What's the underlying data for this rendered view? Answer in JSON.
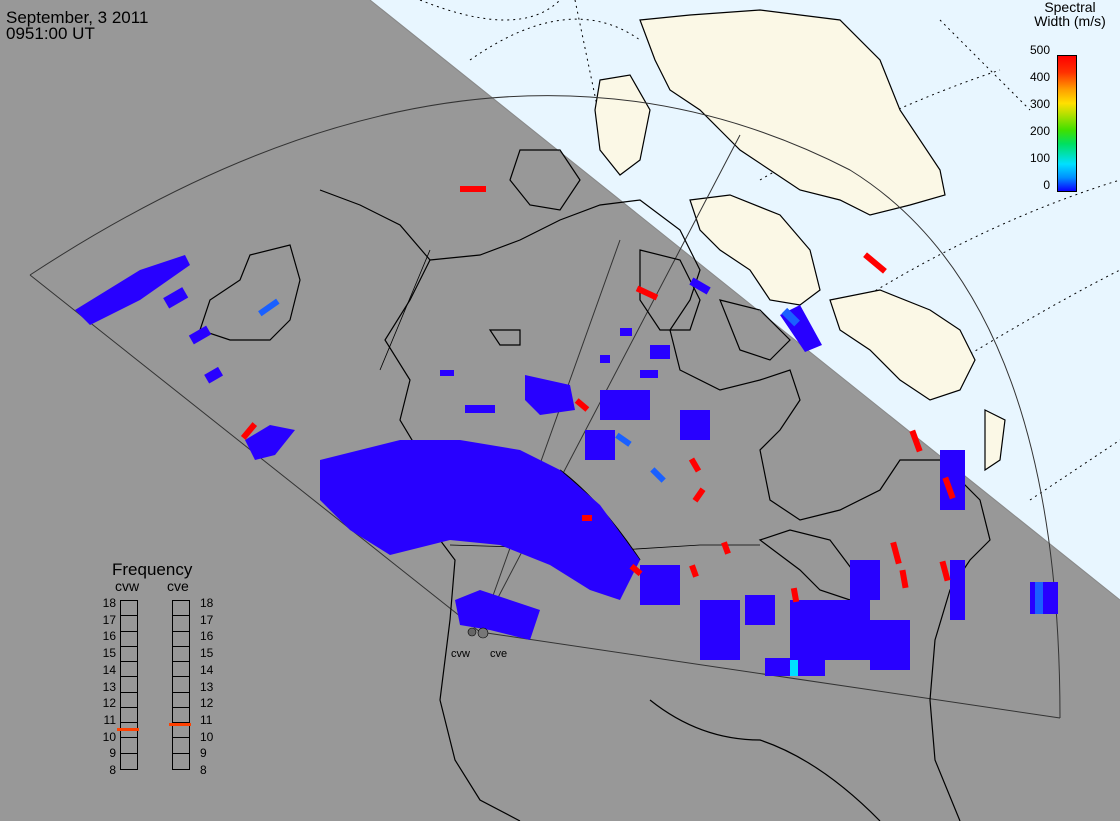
{
  "header": {
    "date": "September, 3 2011",
    "time": "0951:00 UT"
  },
  "colorbar": {
    "title_line1": "Spectral",
    "title_line2": "Width (m/s)",
    "ticks": [
      "500",
      "400",
      "300",
      "200",
      "100",
      "0"
    ],
    "colors": [
      "#ff0000",
      "#ffa000",
      "#ffe000",
      "#40e000",
      "#00e0ff",
      "#0a00ff"
    ]
  },
  "frequency": {
    "title": "Frequency",
    "radar1": "cvw",
    "radar2": "cve",
    "scale": [
      "18",
      "17",
      "16",
      "15",
      "14",
      "13",
      "12",
      "11",
      "10",
      "9",
      "8"
    ],
    "cvw_mhz": 10.5,
    "cve_mhz": 10.8,
    "marker_color": "#ff4000"
  },
  "radars": {
    "west": "cvw",
    "east": "cve"
  },
  "colors": {
    "night": "#989898",
    "ocean_day": "#e8f6ff",
    "land_day": "#fbf8e6",
    "scatter_low": "#2800ff",
    "scatter_high": "#ff0000"
  }
}
